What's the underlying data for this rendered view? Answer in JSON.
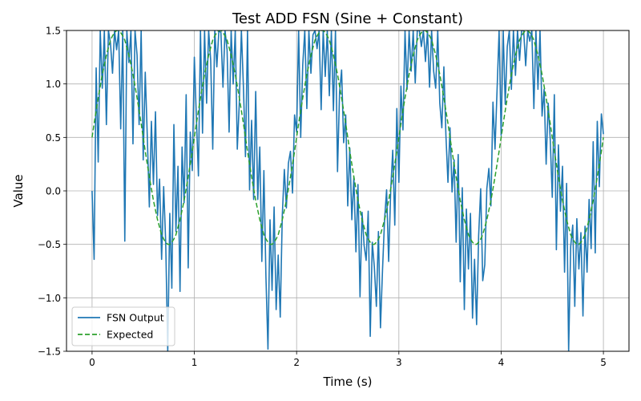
{
  "chart_data": {
    "type": "line",
    "title": "Test ADD FSN (Sine + Constant)",
    "xlabel": "Time (s)",
    "ylabel": "Value",
    "xlim": [
      -0.25,
      5.25
    ],
    "ylim": [
      -1.5,
      1.5
    ],
    "xticks": [
      0,
      1,
      2,
      3,
      4,
      5
    ],
    "xtick_labels": [
      "0",
      "1",
      "2",
      "3",
      "4",
      "5"
    ],
    "yticks": [
      -1.5,
      -1.0,
      -0.5,
      0.0,
      0.5,
      1.0,
      1.5
    ],
    "ytick_labels": [
      "−1.5",
      "−1.0",
      "−0.5",
      "0.0",
      "0.5",
      "1.0",
      "1.5"
    ],
    "grid": true,
    "legend_position": "lower-left",
    "series": [
      {
        "name": "FSN Output",
        "color": "#1f77b4",
        "style": "solid",
        "x": [
          0.0,
          0.02,
          0.04,
          0.06,
          0.08,
          0.1,
          0.12,
          0.14,
          0.16,
          0.18,
          0.2,
          0.22,
          0.24,
          0.26,
          0.28,
          0.3,
          0.32,
          0.34,
          0.36,
          0.38,
          0.4,
          0.42,
          0.44,
          0.46,
          0.48,
          0.5,
          0.52,
          0.54,
          0.56,
          0.58,
          0.6,
          0.62,
          0.64,
          0.66,
          0.68,
          0.7,
          0.72,
          0.74,
          0.76,
          0.78,
          0.8,
          0.82,
          0.84,
          0.86,
          0.88,
          0.9,
          0.92,
          0.94,
          0.96,
          0.98,
          1.0,
          1.02,
          1.04,
          1.06,
          1.08,
          1.1,
          1.12,
          1.14,
          1.16,
          1.18,
          1.2,
          1.22,
          1.24,
          1.26,
          1.28,
          1.3,
          1.32,
          1.34,
          1.36,
          1.38,
          1.4,
          1.42,
          1.44,
          1.46,
          1.48,
          1.5,
          1.52,
          1.54,
          1.56,
          1.58,
          1.6,
          1.62,
          1.64,
          1.66,
          1.68,
          1.7,
          1.72,
          1.74,
          1.76,
          1.78,
          1.8,
          1.82,
          1.84,
          1.86,
          1.88,
          1.9,
          1.92,
          1.94,
          1.96,
          1.98,
          2.0,
          2.02,
          2.04,
          2.06,
          2.08,
          2.1,
          2.12,
          2.14,
          2.16,
          2.18,
          2.2,
          2.22,
          2.24,
          2.26,
          2.28,
          2.3,
          2.32,
          2.34,
          2.36,
          2.38,
          2.4,
          2.42,
          2.44,
          2.46,
          2.48,
          2.5,
          2.52,
          2.54,
          2.56,
          2.58,
          2.6,
          2.62,
          2.64,
          2.66,
          2.68,
          2.7,
          2.72,
          2.74,
          2.76,
          2.78,
          2.8,
          2.82,
          2.84,
          2.86,
          2.88,
          2.9,
          2.92,
          2.94,
          2.96,
          2.98,
          3.0,
          3.02,
          3.04,
          3.06,
          3.08,
          3.1,
          3.12,
          3.14,
          3.16,
          3.18,
          3.2,
          3.22,
          3.24,
          3.26,
          3.28,
          3.3,
          3.32,
          3.34,
          3.36,
          3.38,
          3.4,
          3.42,
          3.44,
          3.46,
          3.48,
          3.5,
          3.52,
          3.54,
          3.56,
          3.58,
          3.6,
          3.62,
          3.64,
          3.66,
          3.68,
          3.7,
          3.72,
          3.74,
          3.76,
          3.78,
          3.8,
          3.82,
          3.84,
          3.86,
          3.88,
          3.9,
          3.92,
          3.94,
          3.96,
          3.98,
          4.0,
          4.02,
          4.04,
          4.06,
          4.08,
          4.1,
          4.12,
          4.14,
          4.16,
          4.18,
          4.2,
          4.22,
          4.24,
          4.26,
          4.28,
          4.3,
          4.32,
          4.34,
          4.36,
          4.38,
          4.4,
          4.42,
          4.44,
          4.46,
          4.48,
          4.5,
          4.52,
          4.54,
          4.56,
          4.58,
          4.6,
          4.62,
          4.64,
          4.66,
          4.68,
          4.7,
          4.72,
          4.74,
          4.76,
          4.78,
          4.8,
          4.82,
          4.84,
          4.86,
          4.88,
          4.9,
          4.92,
          4.94,
          4.96,
          4.98,
          5.0
        ],
        "y": [
          0.0,
          -0.64,
          1.15,
          0.27,
          1.5,
          0.96,
          1.5,
          0.62,
          1.5,
          1.38,
          1.1,
          1.5,
          1.32,
          1.5,
          0.58,
          1.5,
          -0.47,
          1.5,
          1.2,
          1.5,
          0.44,
          1.5,
          1.27,
          0.62,
          1.5,
          0.29,
          1.11,
          0.51,
          -0.15,
          0.65,
          0.06,
          0.74,
          -0.23,
          0.11,
          -0.64,
          0.04,
          -0.48,
          -1.5,
          -0.21,
          -0.91,
          0.62,
          -0.38,
          0.23,
          -0.94,
          0.41,
          -0.11,
          0.9,
          -0.72,
          0.55,
          0.19,
          1.25,
          0.68,
          0.14,
          1.5,
          0.54,
          1.5,
          0.82,
          1.5,
          1.22,
          0.39,
          1.5,
          1.16,
          1.5,
          1.48,
          0.97,
          1.5,
          1.32,
          0.55,
          1.5,
          1.0,
          1.5,
          0.39,
          0.83,
          1.5,
          0.97,
          0.32,
          1.5,
          0.01,
          0.66,
          -0.08,
          0.93,
          -0.08,
          0.41,
          -0.66,
          0.19,
          -0.8,
          -1.48,
          -0.27,
          -0.93,
          -0.15,
          -1.11,
          -0.6,
          -1.18,
          -0.23,
          0.2,
          -0.16,
          0.26,
          0.37,
          -0.02,
          0.71,
          0.55,
          1.5,
          0.5,
          1.18,
          1.5,
          0.77,
          1.5,
          1.1,
          1.46,
          1.5,
          1.33,
          1.5,
          0.76,
          1.5,
          1.07,
          1.5,
          0.89,
          1.5,
          0.75,
          1.5,
          0.18,
          0.92,
          1.13,
          0.45,
          0.71,
          -0.14,
          0.4,
          -0.27,
          0.13,
          -0.57,
          0.06,
          -0.99,
          -0.2,
          -0.51,
          -0.65,
          -0.19,
          -1.36,
          -0.48,
          -0.71,
          -1.08,
          -0.38,
          -1.28,
          -0.74,
          -0.27,
          0.01,
          -0.66,
          0.0,
          0.38,
          -0.32,
          0.77,
          0.08,
          0.98,
          0.57,
          1.5,
          0.95,
          1.5,
          1.12,
          1.5,
          1.01,
          1.5,
          1.5,
          1.35,
          1.5,
          1.21,
          1.5,
          0.97,
          1.5,
          1.12,
          0.96,
          1.5,
          0.82,
          0.59,
          1.16,
          0.52,
          0.08,
          0.59,
          -0.01,
          0.29,
          -0.48,
          0.34,
          -0.85,
          0.03,
          -1.11,
          -0.17,
          -0.73,
          -0.21,
          -1.19,
          -0.64,
          -1.25,
          -0.42,
          0.02,
          -0.84,
          -0.69,
          0.02,
          0.21,
          -0.14,
          0.83,
          0.39,
          0.94,
          1.5,
          0.52,
          1.5,
          0.81,
          1.35,
          1.5,
          0.95,
          1.5,
          1.08,
          1.5,
          1.22,
          1.5,
          1.5,
          1.17,
          1.5,
          1.4,
          1.5,
          0.77,
          1.5,
          0.95,
          1.5,
          0.7,
          0.95,
          0.25,
          0.82,
          0.48,
          -0.06,
          0.9,
          -0.55,
          0.43,
          -0.19,
          0.23,
          -0.76,
          0.07,
          -1.5,
          -0.52,
          -0.32,
          -1.08,
          -0.26,
          -0.73,
          -0.39,
          -1.17,
          -0.33,
          -0.76,
          -0.08,
          -0.54,
          0.46,
          -0.58,
          0.65,
          0.04,
          0.72,
          0.53
        ]
      },
      {
        "name": "Expected",
        "color": "#2ca02c",
        "style": "dashed",
        "x": [
          0.0,
          0.02,
          0.04,
          0.06,
          0.08,
          0.1,
          0.12,
          0.14,
          0.16,
          0.18,
          0.2,
          0.22,
          0.24,
          0.26,
          0.28,
          0.3,
          0.32,
          0.34,
          0.36,
          0.38,
          0.4,
          0.42,
          0.44,
          0.46,
          0.48,
          0.5,
          0.52,
          0.54,
          0.56,
          0.58,
          0.6,
          0.62,
          0.64,
          0.66,
          0.68,
          0.7,
          0.72,
          0.74,
          0.76,
          0.78,
          0.8,
          0.82,
          0.84,
          0.86,
          0.88,
          0.9,
          0.92,
          0.94,
          0.96,
          0.98,
          1.0,
          1.02,
          1.04,
          1.06,
          1.08,
          1.1,
          1.12,
          1.14,
          1.16,
          1.18,
          1.2,
          1.22,
          1.24,
          1.26,
          1.28,
          1.3,
          1.32,
          1.34,
          1.36,
          1.38,
          1.4,
          1.42,
          1.44,
          1.46,
          1.48,
          1.5,
          1.52,
          1.54,
          1.56,
          1.58,
          1.6,
          1.62,
          1.64,
          1.66,
          1.68,
          1.7,
          1.72,
          1.74,
          1.76,
          1.78,
          1.8,
          1.82,
          1.84,
          1.86,
          1.88,
          1.9,
          1.92,
          1.94,
          1.96,
          1.98,
          2.0,
          2.02,
          2.04,
          2.06,
          2.08,
          2.1,
          2.12,
          2.14,
          2.16,
          2.18,
          2.2,
          2.22,
          2.24,
          2.26,
          2.28,
          2.3,
          2.32,
          2.34,
          2.36,
          2.38,
          2.4,
          2.42,
          2.44,
          2.46,
          2.48,
          2.5,
          2.52,
          2.54,
          2.56,
          2.58,
          2.6,
          2.62,
          2.64,
          2.66,
          2.68,
          2.7,
          2.72,
          2.74,
          2.76,
          2.78,
          2.8,
          2.82,
          2.84,
          2.86,
          2.88,
          2.9,
          2.92,
          2.94,
          2.96,
          2.98,
          3.0,
          3.02,
          3.04,
          3.06,
          3.08,
          3.1,
          3.12,
          3.14,
          3.16,
          3.18,
          3.2,
          3.22,
          3.24,
          3.26,
          3.28,
          3.3,
          3.32,
          3.34,
          3.36,
          3.38,
          3.4,
          3.42,
          3.44,
          3.46,
          3.48,
          3.5,
          3.52,
          3.54,
          3.56,
          3.58,
          3.6,
          3.62,
          3.64,
          3.66,
          3.68,
          3.7,
          3.72,
          3.74,
          3.76,
          3.78,
          3.8,
          3.82,
          3.84,
          3.86,
          3.88,
          3.9,
          3.92,
          3.94,
          3.96,
          3.98,
          4.0,
          4.02,
          4.04,
          4.06,
          4.08,
          4.1,
          4.12,
          4.14,
          4.16,
          4.18,
          4.2,
          4.22,
          4.24,
          4.26,
          4.28,
          4.3,
          4.32,
          4.34,
          4.36,
          4.38,
          4.4,
          4.42,
          4.44,
          4.46,
          4.48,
          4.5,
          4.52,
          4.54,
          4.56,
          4.58,
          4.6,
          4.62,
          4.64,
          4.66,
          4.68,
          4.7,
          4.72,
          4.74,
          4.76,
          4.78,
          4.8,
          4.82,
          4.84,
          4.86,
          4.88,
          4.9,
          4.92,
          4.94,
          4.96,
          4.98,
          5.0
        ],
        "y": [
          0.5,
          0.63,
          0.75,
          0.87,
          0.98,
          1.09,
          1.18,
          1.27,
          1.34,
          1.41,
          1.45,
          1.48,
          1.5,
          1.5,
          1.48,
          1.45,
          1.41,
          1.34,
          1.27,
          1.18,
          1.09,
          0.98,
          0.87,
          0.75,
          0.63,
          0.5,
          0.37,
          0.25,
          0.13,
          0.02,
          -0.09,
          -0.18,
          -0.27,
          -0.34,
          -0.41,
          -0.45,
          -0.48,
          -0.5,
          -0.5,
          -0.48,
          -0.45,
          -0.41,
          -0.34,
          -0.27,
          -0.18,
          -0.09,
          0.02,
          0.13,
          0.25,
          0.37,
          0.5,
          0.63,
          0.75,
          0.87,
          0.98,
          1.09,
          1.18,
          1.27,
          1.34,
          1.41,
          1.45,
          1.48,
          1.5,
          1.5,
          1.48,
          1.45,
          1.41,
          1.34,
          1.27,
          1.18,
          1.09,
          0.98,
          0.87,
          0.75,
          0.63,
          0.5,
          0.37,
          0.25,
          0.13,
          0.02,
          -0.09,
          -0.18,
          -0.27,
          -0.34,
          -0.41,
          -0.45,
          -0.48,
          -0.5,
          -0.5,
          -0.48,
          -0.45,
          -0.41,
          -0.34,
          -0.27,
          -0.18,
          -0.09,
          0.02,
          0.13,
          0.25,
          0.37,
          0.5,
          0.63,
          0.75,
          0.87,
          0.98,
          1.09,
          1.18,
          1.27,
          1.34,
          1.41,
          1.45,
          1.48,
          1.5,
          1.5,
          1.48,
          1.45,
          1.41,
          1.34,
          1.27,
          1.18,
          1.09,
          0.98,
          0.87,
          0.75,
          0.63,
          0.5,
          0.37,
          0.25,
          0.13,
          0.02,
          -0.09,
          -0.18,
          -0.27,
          -0.34,
          -0.41,
          -0.45,
          -0.48,
          -0.5,
          -0.5,
          -0.48,
          -0.45,
          -0.41,
          -0.34,
          -0.27,
          -0.18,
          -0.09,
          0.02,
          0.13,
          0.25,
          0.37,
          0.5,
          0.63,
          0.75,
          0.87,
          0.98,
          1.09,
          1.18,
          1.27,
          1.34,
          1.41,
          1.45,
          1.48,
          1.5,
          1.5,
          1.48,
          1.45,
          1.41,
          1.34,
          1.27,
          1.18,
          1.09,
          0.98,
          0.87,
          0.75,
          0.63,
          0.5,
          0.37,
          0.25,
          0.13,
          0.02,
          -0.09,
          -0.18,
          -0.27,
          -0.34,
          -0.41,
          -0.45,
          -0.48,
          -0.5,
          -0.5,
          -0.48,
          -0.45,
          -0.41,
          -0.34,
          -0.27,
          -0.18,
          -0.09,
          0.02,
          0.13,
          0.25,
          0.37,
          0.5,
          0.63,
          0.75,
          0.87,
          0.98,
          1.09,
          1.18,
          1.27,
          1.34,
          1.41,
          1.45,
          1.48,
          1.5,
          1.5,
          1.48,
          1.45,
          1.41,
          1.34,
          1.27,
          1.18,
          1.09,
          0.98,
          0.87,
          0.75,
          0.63,
          0.5,
          0.37,
          0.25,
          0.13,
          0.02,
          -0.09,
          -0.18,
          -0.27,
          -0.34,
          -0.41,
          -0.45,
          -0.48,
          -0.5,
          -0.5,
          -0.48,
          -0.45,
          -0.41,
          -0.34,
          -0.27,
          -0.18,
          -0.09,
          0.02,
          0.13,
          0.25,
          0.37,
          0.5
        ]
      }
    ]
  }
}
